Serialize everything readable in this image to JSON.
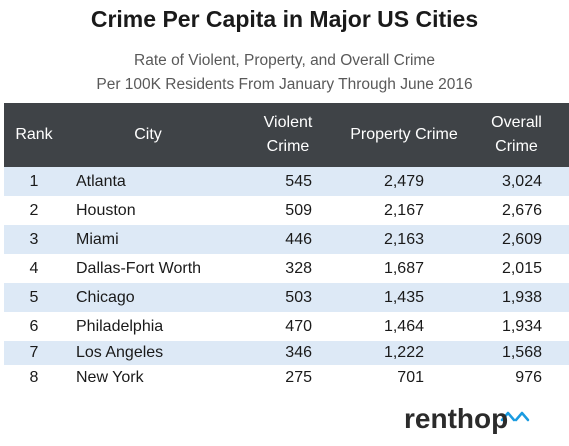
{
  "title": "Crime Per Capita in Major US Cities",
  "subtitle_line1": "Rate of Violent, Property, and Overall Crime",
  "subtitle_line2": "Per 100K Residents From January Through June 2016",
  "chart_data": {
    "type": "table",
    "columns": [
      "Rank",
      "City",
      "Violent Crime",
      "Property Crime",
      "Overall Crime"
    ],
    "rows": [
      {
        "rank": "1",
        "city": "Atlanta",
        "violent": "545",
        "property": "2,479",
        "overall": "3,024"
      },
      {
        "rank": "2",
        "city": "Houston",
        "violent": "509",
        "property": "2,167",
        "overall": "2,676"
      },
      {
        "rank": "3",
        "city": "Miami",
        "violent": "446",
        "property": "2,163",
        "overall": "2,609"
      },
      {
        "rank": "4",
        "city": "Dallas-Fort Worth",
        "violent": "328",
        "property": "1,687",
        "overall": "2,015"
      },
      {
        "rank": "5",
        "city": "Chicago",
        "violent": "503",
        "property": "1,435",
        "overall": "1,938"
      },
      {
        "rank": "6",
        "city": "Philadelphia",
        "violent": "470",
        "property": "1,464",
        "overall": "1,934"
      },
      {
        "rank": "7",
        "city": "Los Angeles",
        "violent": "346",
        "property": "1,222",
        "overall": "1,568"
      },
      {
        "rank": "8",
        "city": "New York",
        "violent": "275",
        "property": "701",
        "overall": "976"
      }
    ]
  },
  "logo_text": "renthop",
  "colors": {
    "header_bg": "#3f4347",
    "band": "#dde9f6",
    "logo_dark": "#2b2b2b",
    "logo_accent": "#1a9be0"
  }
}
